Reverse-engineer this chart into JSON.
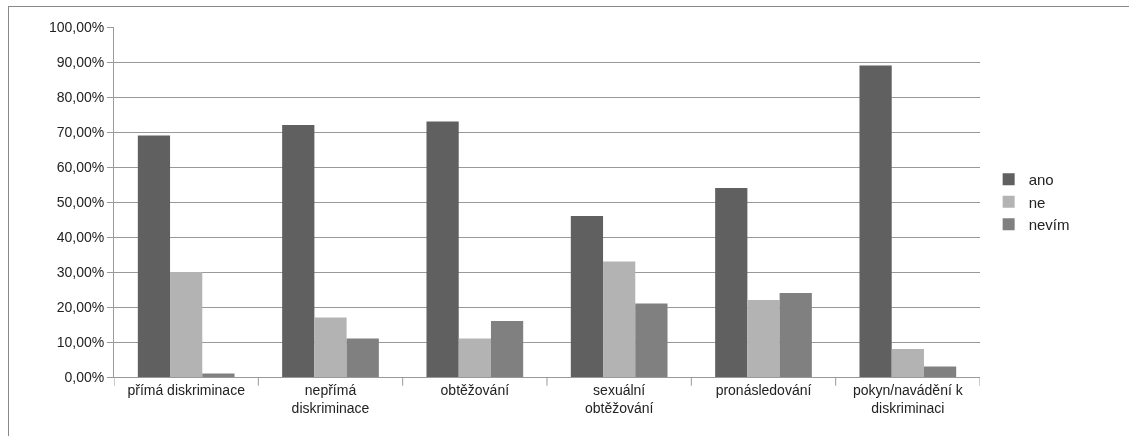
{
  "chart_data": {
    "type": "bar",
    "categories": [
      "přímá diskriminace",
      "nepřímá diskriminace",
      "obtěžování",
      "sexuální obtěžování",
      "pronásledování",
      "pokyn/navádění k diskriminaci"
    ],
    "series": [
      {
        "name": "ano",
        "color": "#606060",
        "values": [
          69,
          72,
          73,
          46,
          54,
          89
        ]
      },
      {
        "name": "ne",
        "color": "#b3b3b3",
        "values": [
          30,
          17,
          11,
          33,
          22,
          8
        ]
      },
      {
        "name": "nevím",
        "color": "#808080",
        "values": [
          1,
          11,
          16,
          21,
          24,
          3
        ]
      }
    ],
    "ylim": [
      0,
      100
    ],
    "yticks": [
      {
        "value": 0,
        "label": "0,00%"
      },
      {
        "value": 10,
        "label": "10,00%"
      },
      {
        "value": 20,
        "label": "20,00%"
      },
      {
        "value": 30,
        "label": "30,00%"
      },
      {
        "value": 40,
        "label": "40,00%"
      },
      {
        "value": 50,
        "label": "50,00%"
      },
      {
        "value": 60,
        "label": "60,00%"
      },
      {
        "value": 70,
        "label": "70,00%"
      },
      {
        "value": 80,
        "label": "80,00%"
      },
      {
        "value": 90,
        "label": "90,00%"
      },
      {
        "value": 100,
        "label": "100,00%"
      }
    ],
    "grid": "y",
    "legend": "right"
  }
}
